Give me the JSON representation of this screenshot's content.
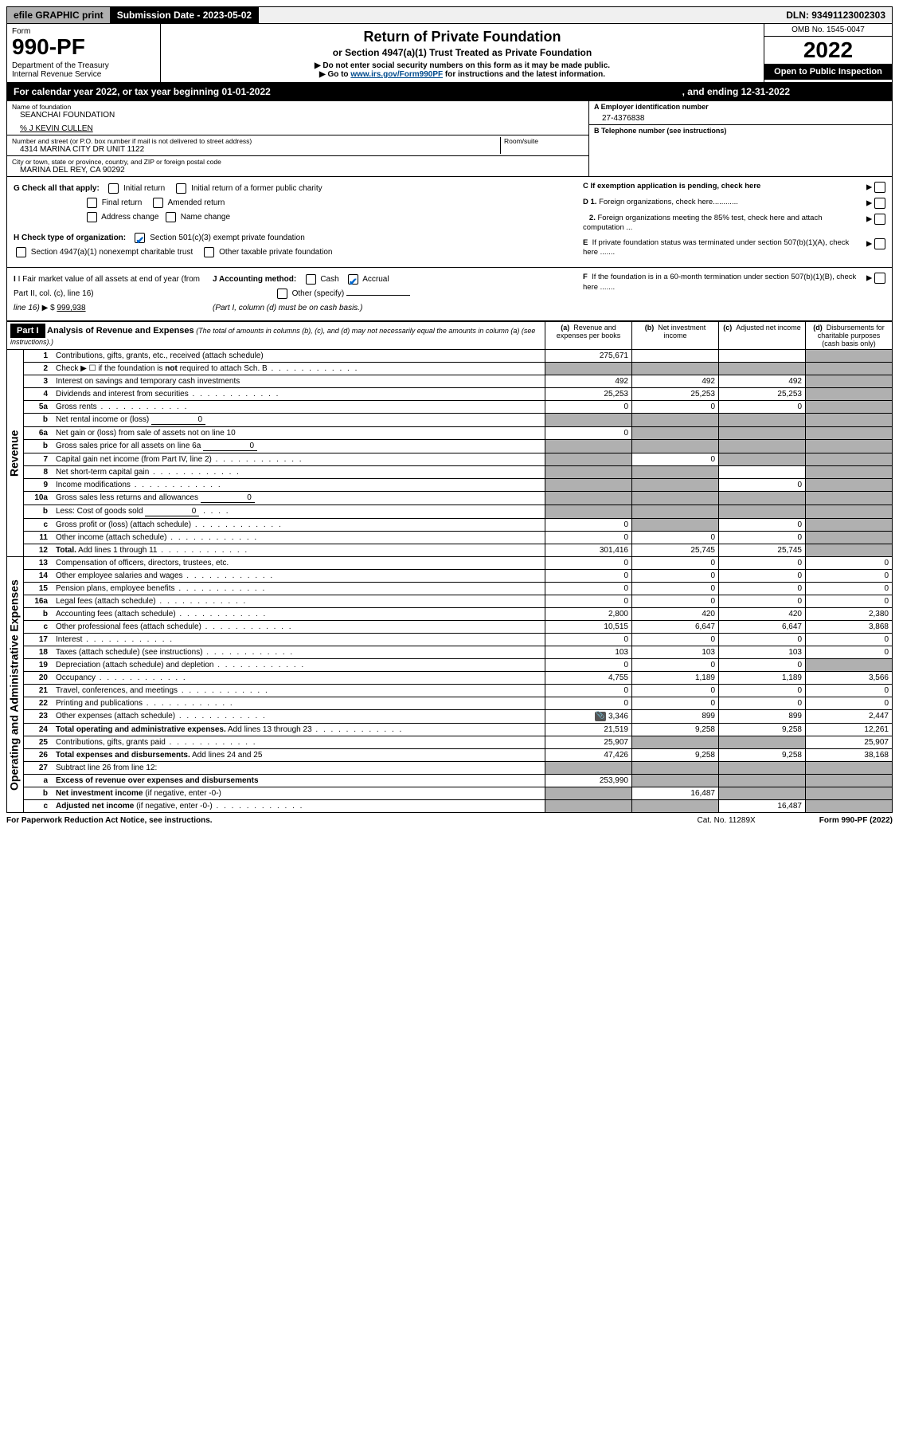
{
  "topbar": {
    "efile": "efile GRAPHIC print",
    "sub_label": "Submission Date - ",
    "sub_date": "2023-05-02",
    "dln_label": "DLN: ",
    "dln": "93491123002303"
  },
  "header": {
    "form_label": "Form",
    "form_no": "990-PF",
    "dept1": "Department of the Treasury",
    "dept2": "Internal Revenue Service",
    "title": "Return of Private Foundation",
    "subtitle": "or Section 4947(a)(1) Trust Treated as Private Foundation",
    "note1": "▶ Do not enter social security numbers on this form as it may be made public.",
    "note2_pre": "▶ Go to ",
    "note2_link": "www.irs.gov/Form990PF",
    "note2_post": " for instructions and the latest information.",
    "omb": "OMB No. 1545-0047",
    "year": "2022",
    "open": "Open to Public Inspection"
  },
  "calyear": {
    "text": "For calendar year 2022, or tax year beginning 01-01-2022",
    "ending": ", and ending 12-31-2022"
  },
  "entity": {
    "name_label": "Name of foundation",
    "name": "SEANCHAI FOUNDATION",
    "care_of": "% J KEVIN CULLEN",
    "addr_label": "Number and street (or P.O. box number if mail is not delivered to street address)",
    "addr": "4314 MARINA CITY DR UNIT 1122",
    "room_label": "Room/suite",
    "city_label": "City or town, state or province, country, and ZIP or foreign postal code",
    "city": "MARINA DEL REY, CA  90292",
    "a_label": "A Employer identification number",
    "ein": "27-4376838",
    "b_label": "B Telephone number (see instructions)",
    "c_label": "C If exemption application is pending, check here",
    "d1": "D 1. Foreign organizations, check here............",
    "d2": "2. Foreign organizations meeting the 85% test, check here and attach computation ...",
    "e": "E  If private foundation status was terminated under section 507(b)(1)(A), check here .......",
    "f": "F  If the foundation is in a 60-month termination under section 507(b)(1)(B), check here .......",
    "g_label": "G Check all that apply:",
    "g_opts": [
      "Initial return",
      "Initial return of a former public charity",
      "Final return",
      "Amended return",
      "Address change",
      "Name change"
    ],
    "h_label": "H Check type of organization:",
    "h1": "Section 501(c)(3) exempt private foundation",
    "h2": "Section 4947(a)(1) nonexempt charitable trust",
    "h3": "Other taxable private foundation",
    "i_label": "I Fair market value of all assets at end of year (from Part II, col. (c), line 16)",
    "i_amt_pre": "▶ $",
    "i_amt": "999,938",
    "j_label": "J Accounting method:",
    "j_cash": "Cash",
    "j_accrual": "Accrual",
    "j_other": "Other (specify)",
    "j_note": "(Part I, column (d) must be on cash basis.)"
  },
  "part1": {
    "label": "Part I",
    "title": "Analysis of Revenue and Expenses",
    "title_note": "(The total of amounts in columns (b), (c), and (d) may not necessarily equal the amounts in column (a) (see instructions).)",
    "cols": {
      "a_pre": "(a)",
      "a": "Revenue and expenses per books",
      "b_pre": "(b)",
      "b": "Net investment income",
      "c_pre": "(c)",
      "c": "Adjusted net income",
      "d_pre": "(d)",
      "d": "Disbursements for charitable purposes (cash basis only)"
    }
  },
  "sections": {
    "revenue": "Revenue",
    "expenses": "Operating and Administrative Expenses"
  },
  "rows": [
    {
      "n": "1",
      "d": "Contributions, gifts, grants, etc., received (attach schedule)",
      "a": "275,671",
      "b": "",
      "c": "",
      "td": "shaded"
    },
    {
      "n": "2",
      "d": "Check ▶ ☐ if the foundation is <b>not</b> required to attach Sch. B",
      "dots": true,
      "a": "shaded",
      "b": "shaded",
      "c": "shaded",
      "td": "shaded"
    },
    {
      "n": "3",
      "d": "Interest on savings and temporary cash investments",
      "a": "492",
      "b": "492",
      "c": "492",
      "td": "shaded"
    },
    {
      "n": "4",
      "d": "Dividends and interest from securities",
      "dots": true,
      "a": "25,253",
      "b": "25,253",
      "c": "25,253",
      "td": "shaded"
    },
    {
      "n": "5a",
      "d": "Gross rents",
      "dots": true,
      "a": "0",
      "b": "0",
      "c": "0",
      "td": "shaded"
    },
    {
      "n": "b",
      "d": "Net rental income or (loss)",
      "inline": "0",
      "a": "shaded",
      "b": "shaded",
      "c": "shaded",
      "td": "shaded"
    },
    {
      "n": "6a",
      "d": "Net gain or (loss) from sale of assets not on line 10",
      "a": "0",
      "b": "shaded",
      "c": "shaded",
      "td": "shaded"
    },
    {
      "n": "b",
      "d": "Gross sales price for all assets on line 6a",
      "inline": "0",
      "a": "shaded",
      "b": "shaded",
      "c": "shaded",
      "td": "shaded"
    },
    {
      "n": "7",
      "d": "Capital gain net income (from Part IV, line 2)",
      "dots": true,
      "a": "shaded",
      "b": "0",
      "c": "shaded",
      "td": "shaded"
    },
    {
      "n": "8",
      "d": "Net short-term capital gain",
      "dots": true,
      "a": "shaded",
      "b": "shaded",
      "c": "",
      "td": "shaded"
    },
    {
      "n": "9",
      "d": "Income modifications",
      "dots": true,
      "a": "shaded",
      "b": "shaded",
      "c": "0",
      "td": "shaded"
    },
    {
      "n": "10a",
      "d": "Gross sales less returns and allowances",
      "inline": "0",
      "a": "shaded",
      "b": "shaded",
      "c": "shaded",
      "td": "shaded"
    },
    {
      "n": "b",
      "d": "Less: Cost of goods sold",
      "dotsShort": true,
      "inline": "0",
      "a": "shaded",
      "b": "shaded",
      "c": "shaded",
      "td": "shaded"
    },
    {
      "n": "c",
      "d": "Gross profit or (loss) (attach schedule)",
      "dots": true,
      "a": "0",
      "b": "shaded",
      "c": "0",
      "td": "shaded"
    },
    {
      "n": "11",
      "d": "Other income (attach schedule)",
      "dots": true,
      "a": "0",
      "b": "0",
      "c": "0",
      "td": "shaded"
    },
    {
      "n": "12",
      "d": "<b>Total.</b> Add lines 1 through 11",
      "dots": true,
      "a": "301,416",
      "b": "25,745",
      "c": "25,745",
      "td": "shaded"
    }
  ],
  "exp_rows": [
    {
      "n": "13",
      "d": "Compensation of officers, directors, trustees, etc.",
      "a": "0",
      "b": "0",
      "c": "0",
      "td": "0"
    },
    {
      "n": "14",
      "d": "Other employee salaries and wages",
      "dots": true,
      "a": "0",
      "b": "0",
      "c": "0",
      "td": "0"
    },
    {
      "n": "15",
      "d": "Pension plans, employee benefits",
      "dots": true,
      "a": "0",
      "b": "0",
      "c": "0",
      "td": "0"
    },
    {
      "n": "16a",
      "d": "Legal fees (attach schedule)",
      "dots": true,
      "a": "0",
      "b": "0",
      "c": "0",
      "td": "0"
    },
    {
      "n": "b",
      "d": "Accounting fees (attach schedule)",
      "dots": true,
      "a": "2,800",
      "b": "420",
      "c": "420",
      "td": "2,380"
    },
    {
      "n": "c",
      "d": "Other professional fees (attach schedule)",
      "dots": true,
      "a": "10,515",
      "b": "6,647",
      "c": "6,647",
      "td": "3,868"
    },
    {
      "n": "17",
      "d": "Interest",
      "dots": true,
      "a": "0",
      "b": "0",
      "c": "0",
      "td": "0"
    },
    {
      "n": "18",
      "d": "Taxes (attach schedule) (see instructions)",
      "dots": true,
      "a": "103",
      "b": "103",
      "c": "103",
      "td": "0"
    },
    {
      "n": "19",
      "d": "Depreciation (attach schedule) and depletion",
      "dots": true,
      "a": "0",
      "b": "0",
      "c": "0",
      "td": "shaded"
    },
    {
      "n": "20",
      "d": "Occupancy",
      "dots": true,
      "a": "4,755",
      "b": "1,189",
      "c": "1,189",
      "td": "3,566"
    },
    {
      "n": "21",
      "d": "Travel, conferences, and meetings",
      "dots": true,
      "a": "0",
      "b": "0",
      "c": "0",
      "td": "0"
    },
    {
      "n": "22",
      "d": "Printing and publications",
      "dots": true,
      "a": "0",
      "b": "0",
      "c": "0",
      "td": "0"
    },
    {
      "n": "23",
      "d": "Other expenses (attach schedule)",
      "dots": true,
      "clip": true,
      "a": "3,346",
      "b": "899",
      "c": "899",
      "td": "2,447"
    },
    {
      "n": "24",
      "d": "<b>Total operating and administrative expenses.</b> Add lines 13 through 23",
      "dots": true,
      "a": "21,519",
      "b": "9,258",
      "c": "9,258",
      "td": "12,261"
    },
    {
      "n": "25",
      "d": "Contributions, gifts, grants paid",
      "dots": true,
      "a": "25,907",
      "b": "shaded",
      "c": "shaded",
      "td": "25,907"
    },
    {
      "n": "26",
      "d": "<b>Total expenses and disbursements.</b> Add lines 24 and 25",
      "a": "47,426",
      "b": "9,258",
      "c": "9,258",
      "td": "38,168"
    },
    {
      "n": "27",
      "d": "Subtract line 26 from line 12:",
      "a": "shaded",
      "b": "shaded",
      "c": "shaded",
      "td": "shaded"
    },
    {
      "n": "a",
      "d": "<b>Excess of revenue over expenses and disbursements</b>",
      "a": "253,990",
      "b": "shaded",
      "c": "shaded",
      "td": "shaded"
    },
    {
      "n": "b",
      "d": "<b>Net investment income</b> (if negative, enter -0-)",
      "a": "shaded",
      "b": "16,487",
      "c": "shaded",
      "td": "shaded"
    },
    {
      "n": "c",
      "d": "<b>Adjusted net income</b> (if negative, enter -0-)",
      "dots": true,
      "a": "shaded",
      "b": "shaded",
      "c": "16,487",
      "td": "shaded"
    }
  ],
  "footer": {
    "left": "For Paperwork Reduction Act Notice, see instructions.",
    "mid": "Cat. No. 11289X",
    "right": "Form 990-PF (2022)"
  }
}
